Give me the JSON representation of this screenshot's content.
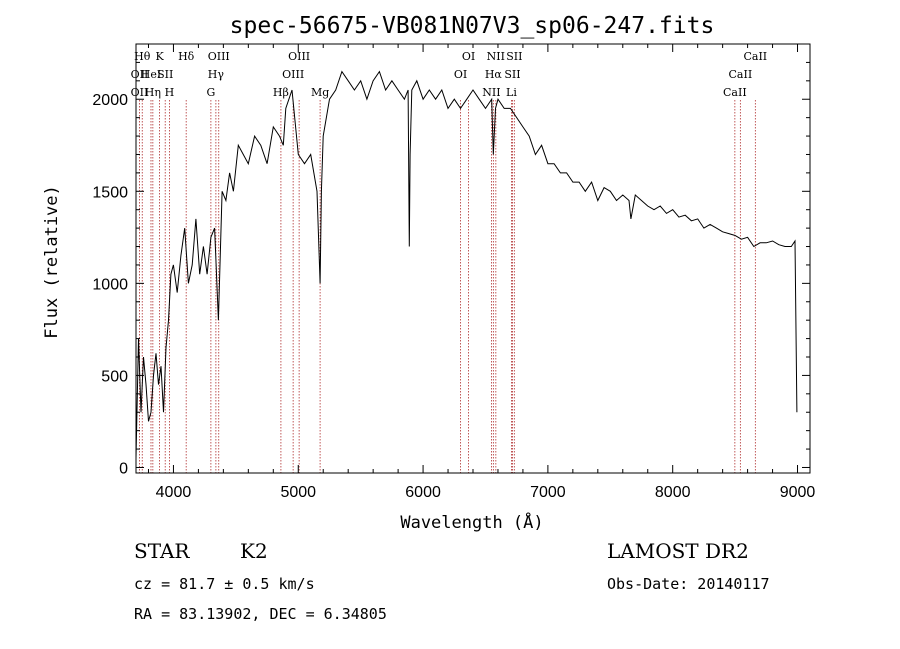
{
  "chart_data": {
    "type": "line",
    "title": "spec-56675-VB081N07V3_sp06-247.fits",
    "xlabel": "Wavelength (Å)",
    "ylabel": "Flux (relative)",
    "xlim": [
      3700,
      9100
    ],
    "ylim": [
      -30,
      2300
    ],
    "xticks": [
      4000,
      5000,
      6000,
      7000,
      8000,
      9000
    ],
    "yticks": [
      0,
      500,
      1000,
      1500,
      2000
    ],
    "grid": false,
    "legend": "none",
    "line_color": "#000000",
    "marker_color": "#b03030",
    "series": [
      {
        "x": [
          3700,
          3720,
          3740,
          3760,
          3780,
          3800,
          3820,
          3840,
          3860,
          3880,
          3900,
          3920,
          3940,
          3960,
          3980,
          4000,
          4030,
          4060,
          4090,
          4120,
          4150,
          4180,
          4210,
          4240,
          4270,
          4300,
          4330,
          4360,
          4390,
          4420,
          4450,
          4480,
          4520,
          4560,
          4600,
          4650,
          4700,
          4750,
          4800,
          4850,
          4880,
          4900,
          4950,
          5000,
          5050,
          5100,
          5150,
          5175,
          5185,
          5200,
          5250,
          5300,
          5350,
          5400,
          5450,
          5500,
          5550,
          5600,
          5650,
          5700,
          5750,
          5800,
          5850,
          5880,
          5890,
          5896,
          5910,
          5950,
          6000,
          6050,
          6100,
          6150,
          6200,
          6250,
          6300,
          6350,
          6400,
          6450,
          6500,
          6550,
          6563,
          6580,
          6600,
          6650,
          6700,
          6750,
          6800,
          6850,
          6900,
          6950,
          7000,
          7050,
          7100,
          7150,
          7200,
          7250,
          7300,
          7350,
          7400,
          7450,
          7500,
          7550,
          7600,
          7650,
          7665,
          7700,
          7750,
          7800,
          7850,
          7900,
          7950,
          8000,
          8050,
          8100,
          8150,
          8200,
          8250,
          8300,
          8350,
          8400,
          8450,
          8500,
          8550,
          8600,
          8650,
          8700,
          8750,
          8800,
          8850,
          8900,
          8950,
          8980,
          8995
        ],
        "y": [
          50,
          700,
          300,
          600,
          450,
          250,
          300,
          500,
          620,
          450,
          550,
          300,
          650,
          800,
          1050,
          1100,
          950,
          1150,
          1300,
          1000,
          1100,
          1350,
          1050,
          1200,
          1050,
          1250,
          1300,
          800,
          1500,
          1450,
          1600,
          1500,
          1750,
          1700,
          1650,
          1800,
          1750,
          1650,
          1850,
          1800,
          1750,
          1950,
          2050,
          1700,
          1650,
          1700,
          1500,
          1000,
          1500,
          1800,
          2000,
          2050,
          2150,
          2100,
          2050,
          2100,
          2000,
          2100,
          2150,
          2050,
          2100,
          2050,
          2000,
          2050,
          1200,
          1700,
          2050,
          2100,
          2000,
          2050,
          2000,
          2050,
          1950,
          2000,
          1950,
          2000,
          2050,
          2000,
          1950,
          2000,
          1700,
          1950,
          2000,
          1950,
          1950,
          1900,
          1850,
          1800,
          1700,
          1750,
          1650,
          1650,
          1600,
          1600,
          1550,
          1550,
          1500,
          1550,
          1450,
          1520,
          1500,
          1450,
          1480,
          1450,
          1350,
          1480,
          1450,
          1420,
          1400,
          1420,
          1380,
          1400,
          1360,
          1370,
          1340,
          1350,
          1300,
          1320,
          1300,
          1280,
          1270,
          1260,
          1240,
          1250,
          1200,
          1220,
          1220,
          1230,
          1210,
          1200,
          1200,
          1230,
          300
        ]
      }
    ],
    "spectral_lines": [
      {
        "wl": 3750,
        "row": 1,
        "label": "Hθ"
      },
      {
        "wl": 3728,
        "row": 2,
        "label": "OII"
      },
      {
        "wl": 3728,
        "row": 3,
        "label": "OII"
      },
      {
        "wl": 3835,
        "row": 3,
        "label": "Hη"
      },
      {
        "wl": 3820,
        "row": 2,
        "label": "HeI"
      },
      {
        "wl": 3889,
        "row": 1,
        "label": "K"
      },
      {
        "wl": 3934,
        "row": 2,
        "label": "SII"
      },
      {
        "wl": 3968,
        "row": 3,
        "label": "H"
      },
      {
        "wl": 4102,
        "row": 1,
        "label": "Hδ"
      },
      {
        "wl": 4300,
        "row": 3,
        "label": "G"
      },
      {
        "wl": 4340,
        "row": 2,
        "label": "Hγ"
      },
      {
        "wl": 4363,
        "row": 1,
        "label": "OIII"
      },
      {
        "wl": 4861,
        "row": 3,
        "label": "Hβ"
      },
      {
        "wl": 4959,
        "row": 2,
        "label": "OIII"
      },
      {
        "wl": 5007,
        "row": 1,
        "label": "OIII"
      },
      {
        "wl": 5175,
        "row": 3,
        "label": "Mg"
      },
      {
        "wl": 6300,
        "row": 2,
        "label": "OI"
      },
      {
        "wl": 6364,
        "row": 1,
        "label": "OI"
      },
      {
        "wl": 6548,
        "row": 3,
        "label": "NII"
      },
      {
        "wl": 6563,
        "row": 2,
        "label": "Hα"
      },
      {
        "wl": 6583,
        "row": 1,
        "label": "NII"
      },
      {
        "wl": 6708,
        "row": 3,
        "label": "Li"
      },
      {
        "wl": 6716,
        "row": 2,
        "label": "SII"
      },
      {
        "wl": 6731,
        "row": 1,
        "label": "SII"
      },
      {
        "wl": 8498,
        "row": 3,
        "label": "CaII"
      },
      {
        "wl": 8542,
        "row": 2,
        "label": "CaII"
      },
      {
        "wl": 8662,
        "row": 1,
        "label": "CaII"
      }
    ]
  },
  "info": {
    "class": "STAR",
    "subclass": "K2",
    "cz": "cz = 81.7 ± 0.5 km/s",
    "coords": "RA =  83.13902, DEC =   6.34805",
    "survey": "LAMOST DR2",
    "obs_date": "Obs-Date: 20140117"
  }
}
